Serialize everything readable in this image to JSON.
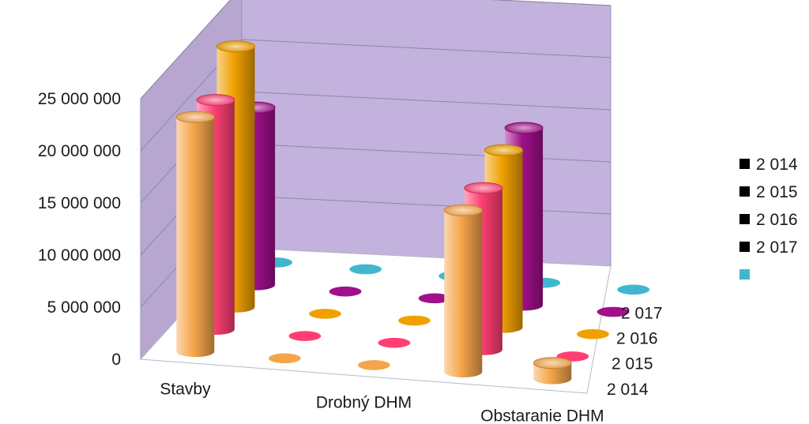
{
  "chart_data": {
    "type": "bar",
    "variant": "3d-cylinder",
    "title": "",
    "xlabel": "",
    "ylabel": "",
    "ylim": [
      0,
      25000000
    ],
    "y_ticks": [
      "0",
      "5 000 000",
      "10 000 000",
      "15 000 000",
      "20 000 000",
      "25 000 000"
    ],
    "grid": true,
    "legend_position": "right",
    "categories": [
      "Stavby",
      "",
      "Drobný DHM",
      "",
      "Obstaranie DHM"
    ],
    "series": [
      {
        "name": "2 014",
        "depth_label": "2 014",
        "color": "#f5a54a",
        "values": [
          22500000,
          0,
          0,
          15500000,
          1500000
        ]
      },
      {
        "name": "2 015",
        "depth_label": "2 015",
        "color": "#ff3f73",
        "values": [
          22000000,
          0,
          0,
          15500000,
          0
        ]
      },
      {
        "name": "2 016",
        "depth_label": "2 016",
        "color": "#f0a000",
        "values": [
          25000000,
          0,
          0,
          17000000,
          0
        ]
      },
      {
        "name": "2 017",
        "depth_label": "2 017",
        "color": "#a0108a",
        "values": [
          17000000,
          0,
          0,
          17000000,
          0
        ]
      },
      {
        "name": "",
        "depth_label": "",
        "color": "#41b6cf",
        "values": [
          0,
          0,
          0,
          0,
          0
        ]
      }
    ],
    "colors": {
      "wall": "#c3b2dd",
      "floor": "#ffffff",
      "gridline": "#8f86a8"
    }
  }
}
